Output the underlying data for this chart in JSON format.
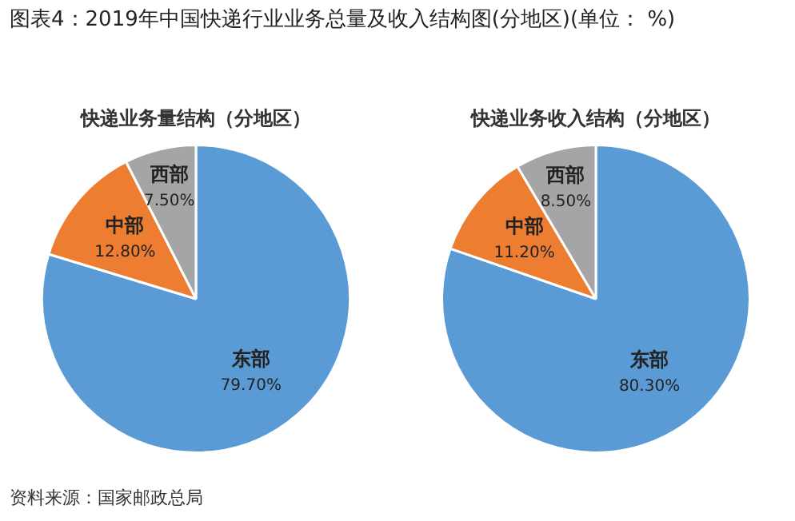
{
  "chart_data": [
    {
      "type": "pie",
      "title": "快递业务量结构（分地区）",
      "categories": [
        "东部",
        "中部",
        "西部"
      ],
      "values": [
        79.7,
        12.8,
        7.5
      ],
      "value_labels": [
        "79.70%",
        "12.80%",
        "7.50%"
      ],
      "colors": [
        "#5b9bd5",
        "#ed7d31",
        "#a5a5a5"
      ],
      "legend": false,
      "annotations": [
        "图表4：2019年中国快递行业业务总量及收入结构图(分地区)(单位： %)",
        "资料来源：国家邮政总局"
      ]
    },
    {
      "type": "pie",
      "title": "快递业务收入结构（分地区）",
      "categories": [
        "东部",
        "中部",
        "西部"
      ],
      "values": [
        80.3,
        11.2,
        8.5
      ],
      "value_labels": [
        "80.30%",
        "11.20%",
        "8.50%"
      ],
      "colors": [
        "#5b9bd5",
        "#ed7d31",
        "#a5a5a5"
      ],
      "legend": false
    }
  ]
}
